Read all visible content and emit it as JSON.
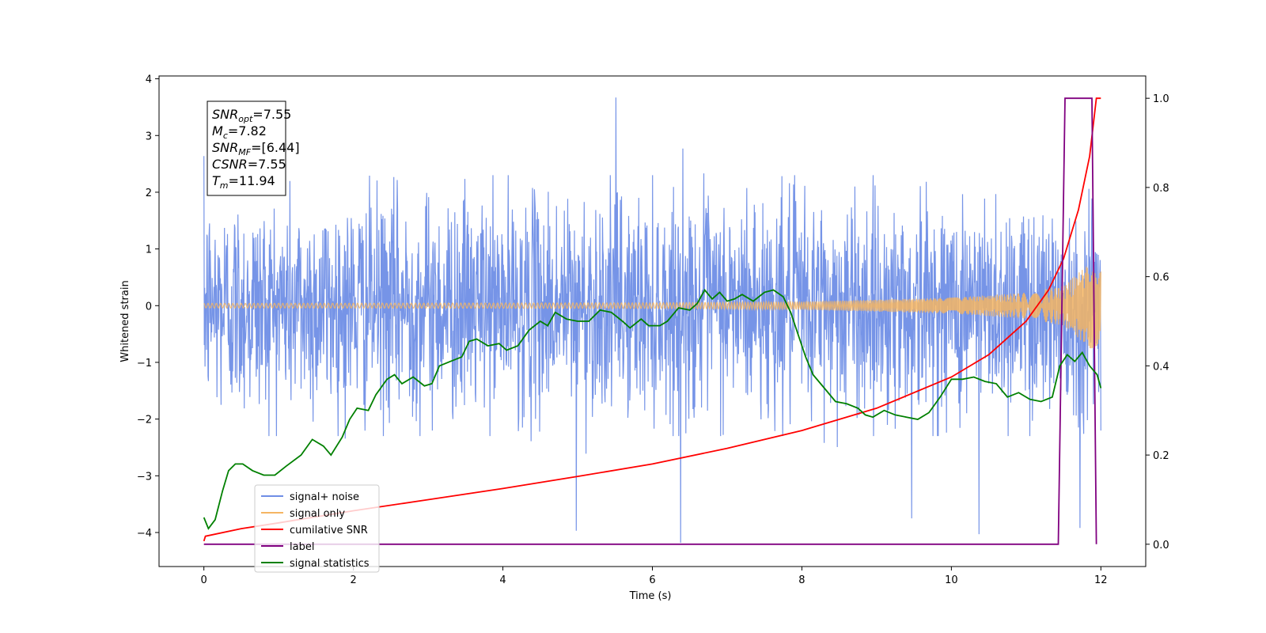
{
  "chart_data": {
    "type": "line",
    "xlabel": "Time (s)",
    "ylabel": "Whitened strain",
    "xlim": [
      -0.6,
      12.6
    ],
    "ylim": [
      -4.6,
      4.05
    ],
    "y2lim": [
      -0.05,
      1.05
    ],
    "x_ticks": [
      0,
      2,
      4,
      6,
      8,
      10,
      12
    ],
    "x_tick_labels": [
      "0",
      "2",
      "4",
      "6",
      "8",
      "10",
      "12"
    ],
    "y_ticks": [
      -4,
      -3,
      -2,
      -1,
      0,
      1,
      2,
      3,
      4
    ],
    "y_tick_labels": [
      "−4",
      "−3",
      "−2",
      "−1",
      "0",
      "1",
      "2",
      "3",
      "4"
    ],
    "y2_ticks": [
      0.0,
      0.2,
      0.4,
      0.6,
      0.8,
      1.0
    ],
    "y2_tick_labels": [
      "0.0",
      "0.2",
      "0.4",
      "0.6",
      "0.8",
      "1.0"
    ],
    "grid": false,
    "legend_position": "bottom-left",
    "annotation": {
      "lines": [
        {
          "sym": "SNR",
          "sub": "opt",
          "value": "=7.55"
        },
        {
          "sym": "M",
          "sub": "c",
          "value": "=7.82"
        },
        {
          "sym": "SNR",
          "sub": "MF",
          "value": "=[6.44]"
        },
        {
          "sym": "CSNR",
          "sub": "",
          "value": "=7.55"
        },
        {
          "sym": "T",
          "sub": "m",
          "value": "=11.94"
        }
      ]
    },
    "series": [
      {
        "name": "signal+ noise",
        "axis": "left",
        "color": "#6f8ee6",
        "style": "noise",
        "t_range": [
          0,
          12.0
        ],
        "typical_range": [
          -2.3,
          2.3
        ],
        "extremes": [
          {
            "x": 5.51,
            "y": 3.67
          },
          {
            "x": 6.38,
            "y": -4.18
          },
          {
            "x": 4.98,
            "y": -3.97
          },
          {
            "x": 10.37,
            "y": -4.03
          },
          {
            "x": 11.72,
            "y": -3.92
          },
          {
            "x": 9.47,
            "y": -3.75
          }
        ]
      },
      {
        "name": "signal only",
        "axis": "left",
        "color": "#f5b563",
        "style": "chirp",
        "t_range": [
          0,
          12.0
        ],
        "envelope": [
          {
            "x": 0,
            "y": 0.04
          },
          {
            "x": 6,
            "y": 0.05
          },
          {
            "x": 8,
            "y": 0.07
          },
          {
            "x": 10,
            "y": 0.14
          },
          {
            "x": 11,
            "y": 0.23
          },
          {
            "x": 11.5,
            "y": 0.35
          },
          {
            "x": 11.9,
            "y": 0.8
          },
          {
            "x": 12.0,
            "y": 0.6
          }
        ]
      },
      {
        "name": "cumilative SNR",
        "axis": "right",
        "color": "#ff0000",
        "points": [
          {
            "x": 0,
            "y": 0.007
          },
          {
            "x": 0.02,
            "y": 0.018
          },
          {
            "x": 0.5,
            "y": 0.035
          },
          {
            "x": 1,
            "y": 0.048
          },
          {
            "x": 2,
            "y": 0.075
          },
          {
            "x": 3,
            "y": 0.1
          },
          {
            "x": 4,
            "y": 0.125
          },
          {
            "x": 5,
            "y": 0.152
          },
          {
            "x": 6,
            "y": 0.18
          },
          {
            "x": 7,
            "y": 0.215
          },
          {
            "x": 8,
            "y": 0.255
          },
          {
            "x": 9,
            "y": 0.305
          },
          {
            "x": 10,
            "y": 0.375
          },
          {
            "x": 10.5,
            "y": 0.425
          },
          {
            "x": 11,
            "y": 0.5
          },
          {
            "x": 11.3,
            "y": 0.57
          },
          {
            "x": 11.5,
            "y": 0.64
          },
          {
            "x": 11.7,
            "y": 0.75
          },
          {
            "x": 11.85,
            "y": 0.87
          },
          {
            "x": 11.94,
            "y": 1.0
          },
          {
            "x": 12.0,
            "y": 1.0
          }
        ]
      },
      {
        "name": "label",
        "axis": "right",
        "color": "#800080",
        "points": [
          {
            "x": 0,
            "y": 0.0
          },
          {
            "x": 11.43,
            "y": 0.0
          },
          {
            "x": 11.52,
            "y": 1.0
          },
          {
            "x": 11.88,
            "y": 1.0
          },
          {
            "x": 11.94,
            "y": 0.0
          }
        ]
      },
      {
        "name": "signal statistics",
        "axis": "right",
        "color": "#008000",
        "points": [
          {
            "x": 0.0,
            "y": 0.06
          },
          {
            "x": 0.06,
            "y": 0.035
          },
          {
            "x": 0.15,
            "y": 0.055
          },
          {
            "x": 0.25,
            "y": 0.12
          },
          {
            "x": 0.33,
            "y": 0.165
          },
          {
            "x": 0.42,
            "y": 0.18
          },
          {
            "x": 0.52,
            "y": 0.18
          },
          {
            "x": 0.65,
            "y": 0.165
          },
          {
            "x": 0.8,
            "y": 0.155
          },
          {
            "x": 0.95,
            "y": 0.155
          },
          {
            "x": 1.1,
            "y": 0.175
          },
          {
            "x": 1.3,
            "y": 0.2
          },
          {
            "x": 1.45,
            "y": 0.235
          },
          {
            "x": 1.6,
            "y": 0.22
          },
          {
            "x": 1.7,
            "y": 0.2
          },
          {
            "x": 1.85,
            "y": 0.24
          },
          {
            "x": 1.95,
            "y": 0.28
          },
          {
            "x": 2.05,
            "y": 0.305
          },
          {
            "x": 2.2,
            "y": 0.3
          },
          {
            "x": 2.3,
            "y": 0.335
          },
          {
            "x": 2.45,
            "y": 0.37
          },
          {
            "x": 2.55,
            "y": 0.38
          },
          {
            "x": 2.65,
            "y": 0.36
          },
          {
            "x": 2.8,
            "y": 0.375
          },
          {
            "x": 2.95,
            "y": 0.355
          },
          {
            "x": 3.05,
            "y": 0.36
          },
          {
            "x": 3.15,
            "y": 0.4
          },
          {
            "x": 3.3,
            "y": 0.41
          },
          {
            "x": 3.45,
            "y": 0.42
          },
          {
            "x": 3.55,
            "y": 0.455
          },
          {
            "x": 3.65,
            "y": 0.46
          },
          {
            "x": 3.8,
            "y": 0.445
          },
          {
            "x": 3.95,
            "y": 0.45
          },
          {
            "x": 4.05,
            "y": 0.435
          },
          {
            "x": 4.2,
            "y": 0.445
          },
          {
            "x": 4.35,
            "y": 0.48
          },
          {
            "x": 4.5,
            "y": 0.5
          },
          {
            "x": 4.6,
            "y": 0.49
          },
          {
            "x": 4.7,
            "y": 0.52
          },
          {
            "x": 4.85,
            "y": 0.505
          },
          {
            "x": 5.0,
            "y": 0.5
          },
          {
            "x": 5.15,
            "y": 0.5
          },
          {
            "x": 5.3,
            "y": 0.525
          },
          {
            "x": 5.45,
            "y": 0.52
          },
          {
            "x": 5.6,
            "y": 0.5
          },
          {
            "x": 5.7,
            "y": 0.485
          },
          {
            "x": 5.85,
            "y": 0.505
          },
          {
            "x": 5.95,
            "y": 0.49
          },
          {
            "x": 6.1,
            "y": 0.49
          },
          {
            "x": 6.2,
            "y": 0.5
          },
          {
            "x": 6.35,
            "y": 0.53
          },
          {
            "x": 6.5,
            "y": 0.525
          },
          {
            "x": 6.6,
            "y": 0.54
          },
          {
            "x": 6.7,
            "y": 0.57
          },
          {
            "x": 6.8,
            "y": 0.55
          },
          {
            "x": 6.9,
            "y": 0.565
          },
          {
            "x": 7.0,
            "y": 0.545
          },
          {
            "x": 7.1,
            "y": 0.55
          },
          {
            "x": 7.2,
            "y": 0.56
          },
          {
            "x": 7.35,
            "y": 0.545
          },
          {
            "x": 7.5,
            "y": 0.565
          },
          {
            "x": 7.62,
            "y": 0.57
          },
          {
            "x": 7.75,
            "y": 0.555
          },
          {
            "x": 7.85,
            "y": 0.52
          },
          {
            "x": 7.95,
            "y": 0.47
          },
          {
            "x": 8.05,
            "y": 0.42
          },
          {
            "x": 8.15,
            "y": 0.38
          },
          {
            "x": 8.3,
            "y": 0.35
          },
          {
            "x": 8.45,
            "y": 0.32
          },
          {
            "x": 8.6,
            "y": 0.315
          },
          {
            "x": 8.75,
            "y": 0.305
          },
          {
            "x": 8.85,
            "y": 0.29
          },
          {
            "x": 8.95,
            "y": 0.285
          },
          {
            "x": 9.1,
            "y": 0.3
          },
          {
            "x": 9.25,
            "y": 0.29
          },
          {
            "x": 9.4,
            "y": 0.285
          },
          {
            "x": 9.55,
            "y": 0.28
          },
          {
            "x": 9.7,
            "y": 0.295
          },
          {
            "x": 9.85,
            "y": 0.33
          },
          {
            "x": 10.0,
            "y": 0.37
          },
          {
            "x": 10.15,
            "y": 0.37
          },
          {
            "x": 10.3,
            "y": 0.375
          },
          {
            "x": 10.45,
            "y": 0.365
          },
          {
            "x": 10.6,
            "y": 0.36
          },
          {
            "x": 10.75,
            "y": 0.33
          },
          {
            "x": 10.9,
            "y": 0.34
          },
          {
            "x": 11.05,
            "y": 0.325
          },
          {
            "x": 11.2,
            "y": 0.32
          },
          {
            "x": 11.35,
            "y": 0.33
          },
          {
            "x": 11.45,
            "y": 0.4
          },
          {
            "x": 11.55,
            "y": 0.425
          },
          {
            "x": 11.65,
            "y": 0.41
          },
          {
            "x": 11.75,
            "y": 0.43
          },
          {
            "x": 11.85,
            "y": 0.4
          },
          {
            "x": 11.95,
            "y": 0.38
          },
          {
            "x": 12.0,
            "y": 0.35
          }
        ]
      }
    ],
    "legend": [
      {
        "label": "signal+ noise",
        "color": "#6f8ee6"
      },
      {
        "label": "signal only",
        "color": "#f5b563"
      },
      {
        "label": "cumilative SNR",
        "color": "#ff0000"
      },
      {
        "label": "label",
        "color": "#800080"
      },
      {
        "label": "signal statistics",
        "color": "#008000"
      }
    ]
  }
}
